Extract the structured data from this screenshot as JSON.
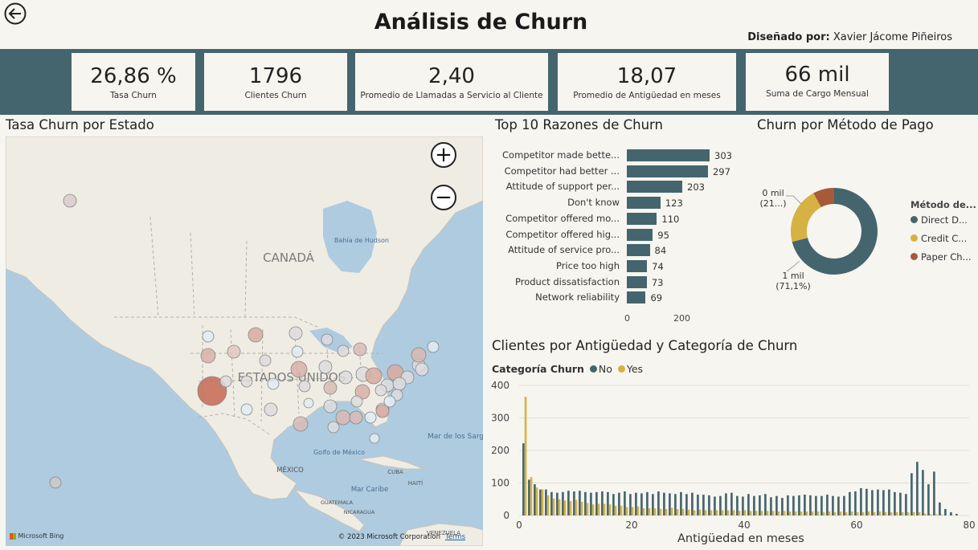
{
  "header": {
    "title": "Análisis de Churn",
    "designer_label": "Diseñado por:",
    "designer_name": "Xavier Jácome Piñeiros"
  },
  "kpis": [
    {
      "value": "26,86 %",
      "label": "Tasa Churn"
    },
    {
      "value": "1796",
      "label": "Clientes Churn"
    },
    {
      "value": "2,40",
      "label": "Promedio de Llamadas a Servicio al Cliente"
    },
    {
      "value": "18,07",
      "label": "Promedio de Antigüedad en meses"
    },
    {
      "value": "66 mil",
      "label": "Suma de Cargo Mensual"
    }
  ],
  "map": {
    "title": "Tasa Churn por Estado",
    "zoom_in": "+",
    "zoom_out": "−",
    "labels": {
      "canada": "CANADÁ",
      "usa": "ESTADOS UNIDOS",
      "hudson": "Bahía de Hudson",
      "mexico": "MÉXICO",
      "gulf": "Golfo de México",
      "sargasso": "Mar de los Sargazos",
      "caribbean": "Mar Caribe",
      "cuba": "CUBA",
      "haiti": "HAITÍ",
      "guatemala": "GUATEMALA",
      "nicaragua": "NICARAGUA",
      "venezuela": "VENEZUELA"
    },
    "logo": "Microsoft Bing",
    "copyright": "© 2023 Microsoft Corporation",
    "terms": "Terms"
  },
  "reasons_chart": {
    "title": "Top 10 Razones de Churn",
    "axis_ticks": [
      "0",
      "200"
    ],
    "bar_color": "#44656e"
  },
  "payment_chart": {
    "title": "Churn por Método de Pago",
    "legend_title": "Método de...",
    "slice_labels": [
      {
        "value": "1 mil",
        "pct": "(71,1%)"
      },
      {
        "value": "0 mil",
        "pct": "(21...)"
      }
    ]
  },
  "tenure_chart": {
    "title": "Clientes por Antigüedad y Categoría de Churn",
    "legend_title": "Categoría Churn",
    "xlabel": "Antigüedad en meses",
    "y_ticks": [
      "0",
      "100",
      "200",
      "300",
      "400"
    ],
    "x_ticks": [
      "0",
      "20",
      "40",
      "60",
      "80"
    ]
  },
  "chart_data": [
    {
      "type": "bar",
      "orientation": "horizontal",
      "title": "Top 10 Razones de Churn",
      "categories": [
        "Competitor made bette...",
        "Competitor had better ...",
        "Attitude of support per...",
        "Don't know",
        "Competitor offered mo...",
        "Competitor offered hig...",
        "Attitude of service pro...",
        "Price too high",
        "Product dissatisfaction",
        "Network reliability"
      ],
      "values": [
        303,
        297,
        203,
        123,
        110,
        95,
        84,
        74,
        73,
        69
      ],
      "xlim": [
        0,
        360
      ],
      "x_ticks": [
        0,
        200
      ]
    },
    {
      "type": "pie",
      "donut": true,
      "title": "Churn por Método de Pago",
      "legend_title": "Método de...",
      "categories": [
        "Direct D...",
        "Credit C...",
        "Paper Ch..."
      ],
      "values": [
        1277,
        377,
        142
      ],
      "colors": [
        "#44656e",
        "#d6b244",
        "#a65a38"
      ],
      "legend_position": "right"
    },
    {
      "type": "bar",
      "title": "Clientes por Antigüedad y Categoría de Churn",
      "xlabel": "Antigüedad en meses",
      "ylabel": "",
      "legend_title": "Categoría Churn",
      "legend_position": "top-left",
      "ylim": [
        0,
        400
      ],
      "xlim": [
        0,
        80
      ],
      "x": [
        1,
        2,
        3,
        4,
        5,
        6,
        7,
        8,
        9,
        10,
        11,
        12,
        13,
        14,
        15,
        16,
        17,
        18,
        19,
        20,
        21,
        22,
        23,
        24,
        25,
        26,
        27,
        28,
        29,
        30,
        31,
        32,
        33,
        34,
        35,
        36,
        37,
        38,
        39,
        40,
        41,
        42,
        43,
        44,
        45,
        46,
        47,
        48,
        49,
        50,
        51,
        52,
        53,
        54,
        55,
        56,
        57,
        58,
        59,
        60,
        61,
        62,
        63,
        64,
        65,
        66,
        67,
        68,
        69,
        70,
        71,
        72,
        73,
        74,
        75,
        76,
        77,
        78
      ],
      "series": [
        {
          "name": "No",
          "color": "#44656e",
          "values": [
            222,
            110,
            96,
            80,
            80,
            72,
            70,
            72,
            76,
            74,
            76,
            72,
            70,
            72,
            74,
            72,
            66,
            70,
            74,
            66,
            70,
            68,
            72,
            66,
            74,
            70,
            68,
            66,
            72,
            66,
            70,
            64,
            64,
            62,
            58,
            60,
            68,
            70,
            60,
            58,
            66,
            60,
            62,
            66,
            56,
            60,
            54,
            62,
            60,
            62,
            64,
            62,
            60,
            60,
            64,
            60,
            58,
            60,
            72,
            74,
            84,
            82,
            78,
            80,
            78,
            80,
            72,
            70,
            66,
            130,
            165,
            140,
            96,
            135,
            40,
            20,
            10,
            5
          ]
        },
        {
          "name": "Yes",
          "color": "#d6b244",
          "values": [
            365,
            118,
            86,
            80,
            62,
            52,
            50,
            46,
            44,
            48,
            42,
            38,
            34,
            36,
            36,
            34,
            30,
            30,
            26,
            26,
            28,
            22,
            22,
            22,
            20,
            20,
            24,
            20,
            20,
            18,
            16,
            18,
            16,
            16,
            16,
            16,
            16,
            16,
            14,
            16,
            14,
            14,
            14,
            14,
            14,
            12,
            14,
            12,
            12,
            12,
            12,
            12,
            12,
            10,
            12,
            10,
            12,
            10,
            12,
            10,
            10,
            12,
            10,
            12,
            10,
            10,
            10,
            10,
            10,
            10,
            10,
            6,
            4,
            4,
            2,
            0,
            0,
            0
          ]
        }
      ]
    }
  ]
}
